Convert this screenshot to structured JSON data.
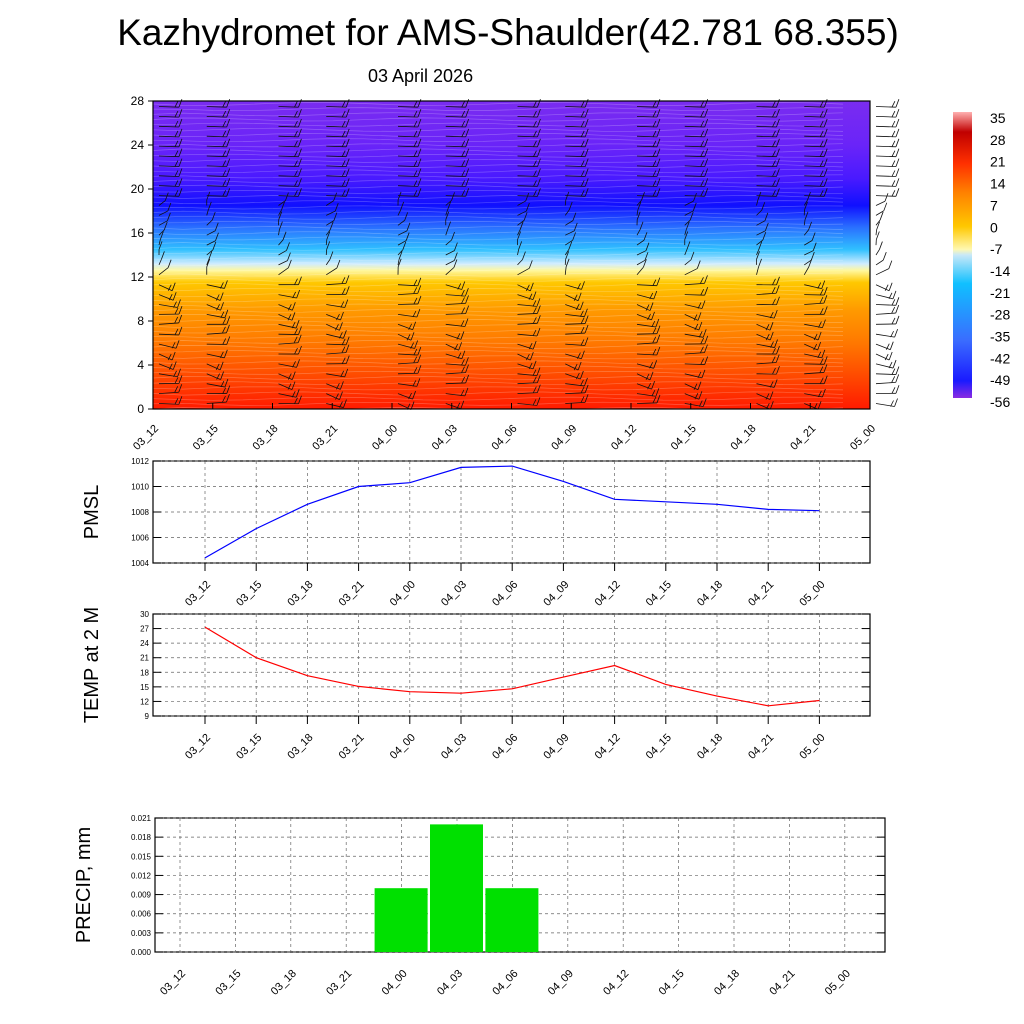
{
  "title": "Kazhydromet for AMS-Shaulder(42.781 68.355)",
  "subtitle": "03 April 2026",
  "chart_data": [
    {
      "type": "heatmap",
      "name": "temperature-wind cross-section",
      "x_ticks": [
        "03_12",
        "03_15",
        "03_18",
        "03_21",
        "04_00",
        "04_03",
        "04_06",
        "04_09",
        "04_12",
        "04_15",
        "04_18",
        "04_21",
        "05_00"
      ],
      "y_ticks": [
        0,
        4,
        8,
        12,
        16,
        20,
        24,
        28
      ],
      "ylim": [
        0,
        28
      ],
      "colorbar": {
        "labels": [
          "35",
          "28",
          "21",
          "14",
          "7",
          "0",
          "-7",
          "-14",
          "-21",
          "-28",
          "-35",
          "-42",
          "-49",
          "-56"
        ],
        "range": [
          -63,
          38
        ]
      },
      "profile_colors": [
        {
          "level": 0,
          "color": "#ff1a00"
        },
        {
          "level": 3,
          "color": "#ff4a00"
        },
        {
          "level": 6,
          "color": "#ff7800"
        },
        {
          "level": 9,
          "color": "#ff9a00"
        },
        {
          "level": 11.5,
          "color": "#ffc800"
        },
        {
          "level": 12.6,
          "color": "#fff8a0"
        },
        {
          "level": 13.2,
          "color": "#d0ecff"
        },
        {
          "level": 14.5,
          "color": "#30c0ff"
        },
        {
          "level": 16.5,
          "color": "#2a70ff"
        },
        {
          "level": 18.5,
          "color": "#1010ff"
        },
        {
          "level": 21,
          "color": "#4a1aff"
        },
        {
          "level": 24,
          "color": "#6a24f8"
        },
        {
          "level": 28,
          "color": "#7a2cf0"
        }
      ]
    },
    {
      "type": "line",
      "ylabel": "PMSL",
      "x": [
        "03_12",
        "03_15",
        "03_18",
        "03_21",
        "04_00",
        "04_03",
        "04_06",
        "04_09",
        "04_12",
        "04_15",
        "04_18",
        "04_21",
        "05_00"
      ],
      "values": [
        1004.4,
        1006.7,
        1008.6,
        1010.0,
        1010.3,
        1011.5,
        1011.6,
        1010.4,
        1009.0,
        1008.8,
        1008.6,
        1008.2,
        1008.1
      ],
      "ylim": [
        1004,
        1012
      ],
      "y_ticks": [
        "1004",
        "1006",
        "1008",
        "1010",
        "1012"
      ],
      "color": "#0000ff"
    },
    {
      "type": "line",
      "ylabel": "TEMP at 2 M",
      "x": [
        "03_12",
        "03_15",
        "03_18",
        "03_21",
        "04_00",
        "04_03",
        "04_06",
        "04_09",
        "04_12",
        "04_15",
        "04_18",
        "04_21",
        "05_00"
      ],
      "values": [
        27.3,
        21.0,
        17.3,
        15.1,
        14.0,
        13.7,
        14.6,
        17.0,
        19.4,
        15.5,
        13.1,
        11.1,
        12.2
      ],
      "ylim": [
        9,
        30
      ],
      "y_ticks": [
        "9",
        "12",
        "15",
        "18",
        "21",
        "24",
        "27",
        "30"
      ],
      "color": "#ff0000"
    },
    {
      "type": "bar",
      "ylabel": "PRECIP, mm",
      "categories": [
        "03_12",
        "03_15",
        "03_18",
        "03_21",
        "04_00",
        "04_03",
        "04_06",
        "04_09",
        "04_12",
        "04_15",
        "04_18",
        "04_21",
        "05_00"
      ],
      "values": [
        0,
        0,
        0,
        0,
        0.01,
        0.02,
        0.01,
        0,
        0,
        0,
        0,
        0,
        0
      ],
      "ylim": [
        0,
        0.021
      ],
      "y_ticks": [
        "0.000",
        "0.003",
        "0.006",
        "0.009",
        "0.012",
        "0.015",
        "0.018",
        "0.021"
      ],
      "color": "#00e000"
    }
  ]
}
